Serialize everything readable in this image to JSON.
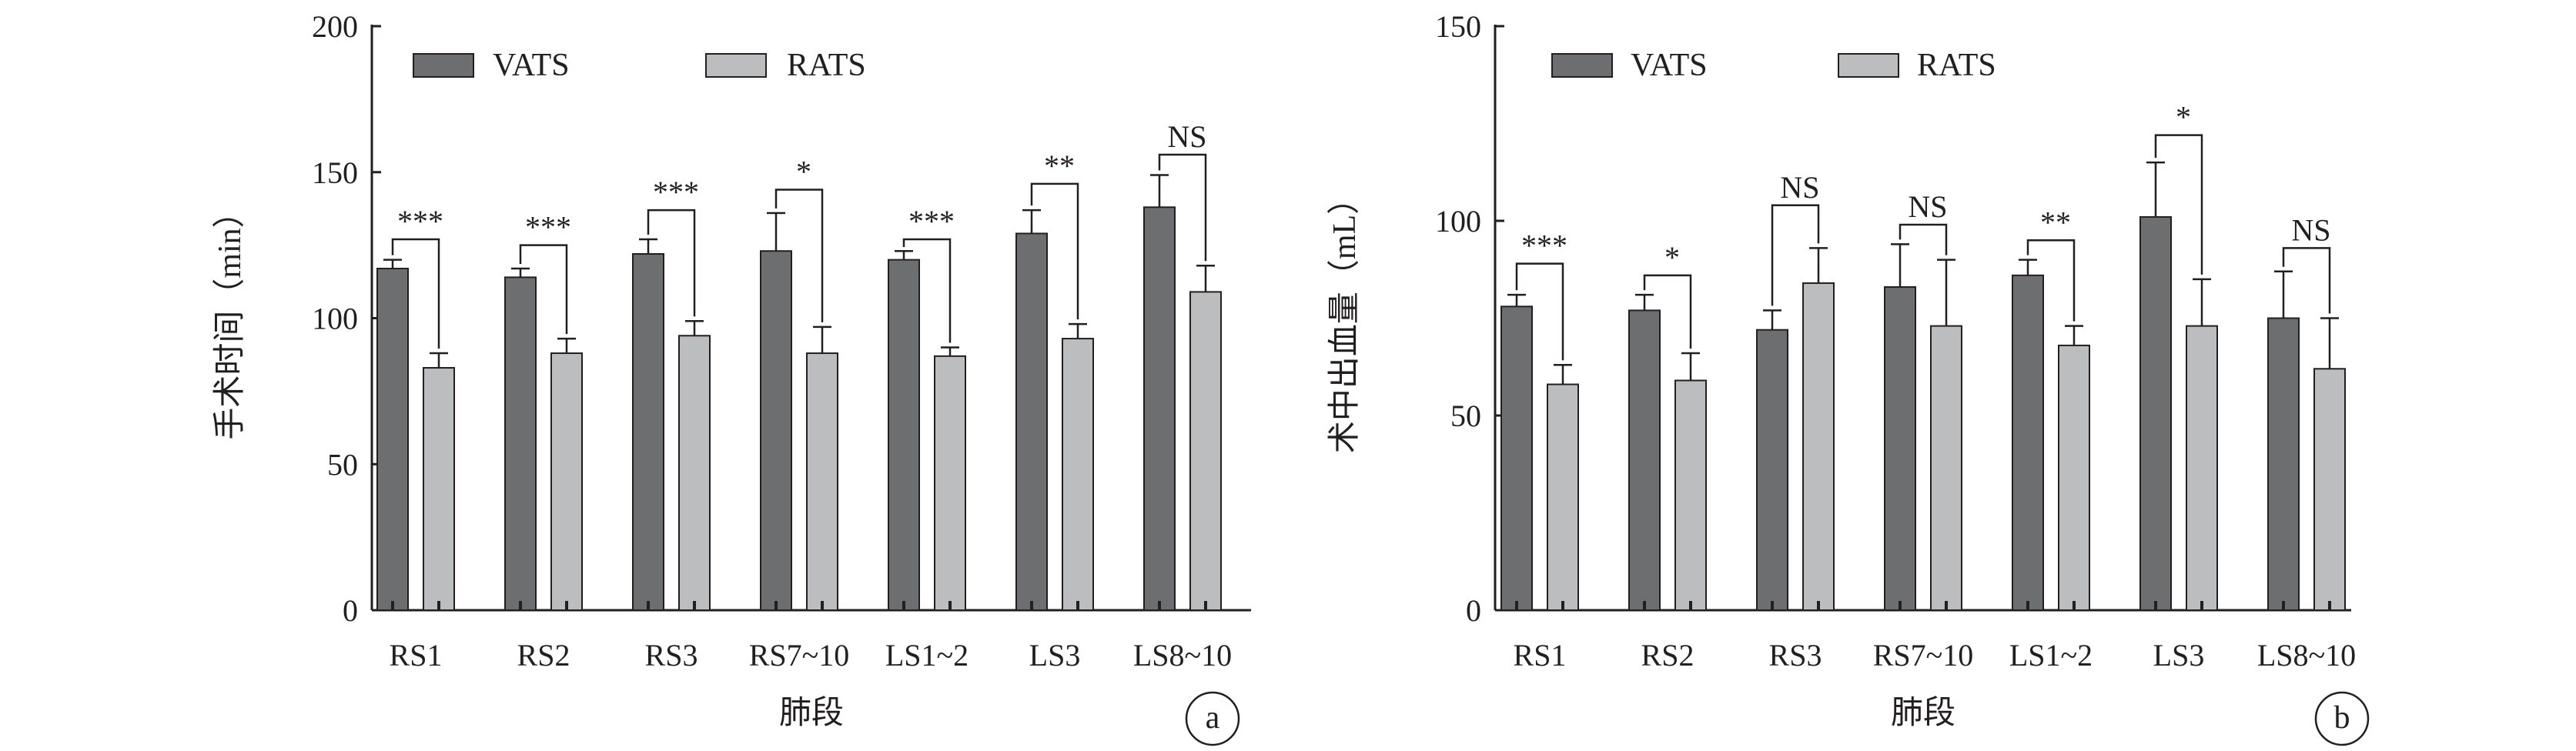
{
  "chart_data": [
    {
      "type": "bar",
      "panel_label": "a",
      "ylabel": "手术时间（min）",
      "xlabel": "肺段",
      "ylim": [
        0,
        200
      ],
      "yticks": [
        0,
        50,
        100,
        150,
        200
      ],
      "grid": false,
      "legend_position": "top-left",
      "categories": [
        "RS1",
        "RS2",
        "RS3",
        "RS7~10",
        "LS1~2",
        "LS3",
        "LS8~10"
      ],
      "series": [
        {
          "name": "VATS",
          "color": "#6d6e70",
          "values": [
            117,
            114,
            122,
            123,
            120,
            129,
            138
          ],
          "errors": [
            3,
            3,
            5,
            13,
            3,
            8,
            11
          ]
        },
        {
          "name": "RATS",
          "color": "#bcbdbf",
          "values": [
            83,
            88,
            94,
            88,
            87,
            93,
            109
          ],
          "errors": [
            5,
            5,
            5,
            9,
            3,
            5,
            9
          ]
        }
      ],
      "significance": [
        "***",
        "***",
        "***",
        "*",
        "***",
        "**",
        "NS"
      ],
      "significance_bracket_y": [
        127,
        125,
        137,
        144,
        127,
        146,
        156
      ]
    },
    {
      "type": "bar",
      "panel_label": "b",
      "ylabel": "术中出血量（mL）",
      "xlabel": "肺段",
      "ylim": [
        0,
        150
      ],
      "yticks": [
        0,
        50,
        100,
        150
      ],
      "grid": false,
      "legend_position": "top-left",
      "categories": [
        "RS1",
        "RS2",
        "RS3",
        "RS7~10",
        "LS1~2",
        "LS3",
        "LS8~10"
      ],
      "series": [
        {
          "name": "VATS",
          "color": "#6d6e70",
          "values": [
            78,
            77,
            72,
            83,
            86,
            101,
            75
          ],
          "errors": [
            3,
            4,
            5,
            11,
            4,
            14,
            12
          ]
        },
        {
          "name": "RATS",
          "color": "#bcbdbf",
          "values": [
            58,
            59,
            84,
            73,
            68,
            73,
            62
          ],
          "errors": [
            5,
            7,
            9,
            17,
            5,
            12,
            13
          ]
        }
      ],
      "significance": [
        "***",
        "*",
        "NS",
        "NS",
        "**",
        "*",
        "NS"
      ],
      "significance_bracket_y": [
        89,
        86,
        104,
        99,
        95,
        122,
        93
      ]
    }
  ]
}
